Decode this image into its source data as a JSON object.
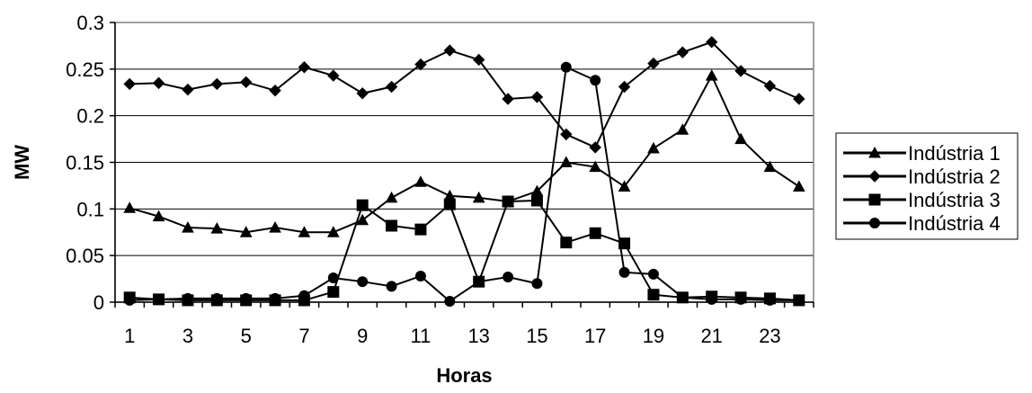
{
  "chart_data": {
    "type": "line",
    "title": "",
    "xlabel": "Horas",
    "ylabel": "MW",
    "ylim": [
      0,
      0.3
    ],
    "xlim": [
      0.5,
      24.5
    ],
    "x": [
      1,
      2,
      3,
      4,
      5,
      6,
      7,
      8,
      9,
      10,
      11,
      12,
      13,
      14,
      15,
      16,
      17,
      18,
      19,
      20,
      21,
      22,
      23,
      24
    ],
    "x_tick_labels": [
      "1",
      "3",
      "5",
      "7",
      "9",
      "11",
      "13",
      "15",
      "17",
      "19",
      "21",
      "23"
    ],
    "y_tick_labels": [
      "0",
      "0.05",
      "0.1",
      "0.15",
      "0.2",
      "0.25",
      "0.3"
    ],
    "grid": "horizontal",
    "legend_position": "right",
    "series": [
      {
        "name": "Indústria 1",
        "marker": "triangle",
        "values": [
          0.101,
          0.092,
          0.08,
          0.079,
          0.075,
          0.08,
          0.075,
          0.075,
          0.088,
          0.112,
          0.129,
          0.114,
          0.112,
          0.108,
          0.119,
          0.15,
          0.145,
          0.124,
          0.165,
          0.185,
          0.243,
          0.175,
          0.145,
          0.124
        ]
      },
      {
        "name": "Indústria 2",
        "marker": "diamond",
        "values": [
          0.234,
          0.235,
          0.228,
          0.234,
          0.236,
          0.227,
          0.252,
          0.243,
          0.224,
          0.231,
          0.255,
          0.27,
          0.26,
          0.218,
          0.22,
          0.18,
          0.166,
          0.231,
          0.256,
          0.268,
          0.279,
          0.248,
          0.232,
          0.218
        ]
      },
      {
        "name": "Indústria 3",
        "marker": "square",
        "values": [
          0.005,
          0.003,
          0.002,
          0.002,
          0.002,
          0.002,
          0.002,
          0.011,
          0.104,
          0.082,
          0.078,
          0.105,
          0.022,
          0.108,
          0.109,
          0.064,
          0.074,
          0.063,
          0.008,
          0.005,
          0.006,
          0.005,
          0.004,
          0.002
        ]
      },
      {
        "name": "Indústria 4",
        "marker": "circle",
        "values": [
          0.002,
          0.003,
          0.004,
          0.004,
          0.004,
          0.004,
          0.007,
          0.026,
          0.022,
          0.017,
          0.028,
          0.001,
          0.022,
          0.027,
          0.02,
          0.252,
          0.238,
          0.032,
          0.03,
          0.005,
          0.003,
          0.003,
          0.002,
          0.002
        ]
      }
    ]
  }
}
